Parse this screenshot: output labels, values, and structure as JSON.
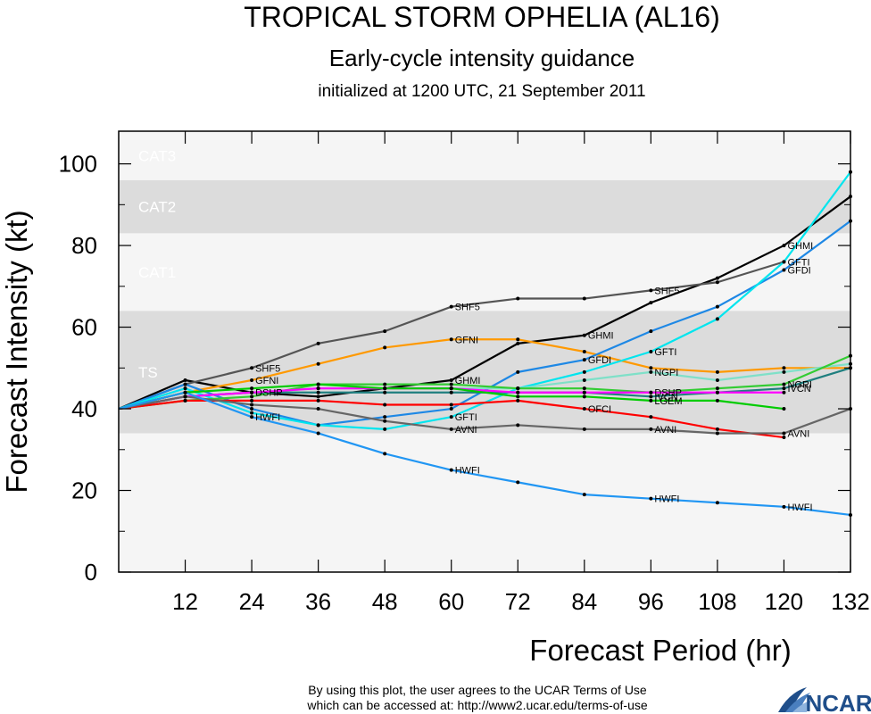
{
  "header": {
    "title": "TROPICAL STORM OPHELIA (AL16)",
    "subtitle": "Early-cycle intensity guidance",
    "init_line": "initialized at 1200 UTC, 21 September 2011"
  },
  "footer": {
    "line1": "By using this plot, the user agrees to the UCAR Terms of Use",
    "line2": "which can be accessed at: http://www2.ucar.edu/terms-of-use",
    "logo_text": "NCAR"
  },
  "chart_data": {
    "type": "line",
    "xlabel": "Forecast Period (hr)",
    "ylabel": "Forecast Intensity (kt)",
    "xlim": [
      0,
      132
    ],
    "ylim": [
      0,
      108
    ],
    "xticks": [
      12,
      24,
      36,
      48,
      60,
      72,
      84,
      96,
      108,
      120,
      132
    ],
    "yticks": [
      0,
      20,
      40,
      60,
      80,
      100
    ],
    "grid": false,
    "intensity_bands": [
      {
        "label": "TS",
        "from": 34,
        "to": 64,
        "color": "#dcdcdc"
      },
      {
        "label": "CAT1",
        "from": 64,
        "to": 83,
        "color": "#f5f5f5"
      },
      {
        "label": "CAT2",
        "from": 83,
        "to": 96,
        "color": "#dcdcdc"
      },
      {
        "label": "CAT3",
        "from": 96,
        "to": 108,
        "color": "#f5f5f5"
      }
    ],
    "below_band_color": "#f5f5f5",
    "series": [
      {
        "name": "GHMI",
        "color": "#000000",
        "x": [
          0,
          12,
          24,
          36,
          48,
          60,
          72,
          84,
          96,
          108,
          120,
          132
        ],
        "values": [
          40,
          47,
          44,
          43,
          45,
          47,
          56,
          58,
          66,
          72,
          80,
          92
        ],
        "label_at": [
          60,
          84,
          120
        ]
      },
      {
        "name": "SHF5",
        "color": "#555555",
        "x": [
          0,
          12,
          24,
          36,
          48,
          60,
          72,
          84,
          96,
          108,
          120
        ],
        "values": [
          40,
          46,
          50,
          56,
          59,
          65,
          67,
          67,
          69,
          71,
          76
        ],
        "label_at": [
          24,
          60,
          96
        ]
      },
      {
        "name": "GFNI",
        "color": "#ff9900",
        "x": [
          0,
          12,
          24,
          36,
          48,
          60,
          72,
          84,
          96,
          108,
          120,
          132
        ],
        "values": [
          40,
          44,
          47,
          51,
          55,
          57,
          57,
          54,
          50,
          49,
          50,
          50
        ],
        "label_at": [
          24,
          60
        ]
      },
      {
        "name": "GFDI",
        "color": "#1e88e5",
        "x": [
          0,
          12,
          24,
          36,
          48,
          60,
          72,
          84,
          96,
          108,
          120,
          132
        ],
        "values": [
          40,
          46,
          40,
          36,
          38,
          40,
          49,
          52,
          59,
          65,
          74,
          86
        ],
        "label_at": [
          84,
          120
        ]
      },
      {
        "name": "GFTI",
        "color": "#00e5ee",
        "x": [
          0,
          12,
          24,
          36,
          48,
          60,
          72,
          84,
          96,
          108,
          120,
          132
        ],
        "values": [
          40,
          45,
          39,
          36,
          35,
          38,
          45,
          49,
          54,
          62,
          76,
          98
        ],
        "label_at": [
          60,
          96,
          120
        ]
      },
      {
        "name": "NGPI",
        "color": "#7fe0c8",
        "x": [
          0,
          12,
          24,
          36,
          48,
          60,
          72,
          84,
          96,
          108,
          120,
          132
        ],
        "values": [
          40,
          43,
          44,
          45,
          45,
          45,
          45,
          47,
          49,
          47,
          49,
          51
        ],
        "label_at": [
          96
        ]
      },
      {
        "name": "NGRI",
        "color": "#33cc33",
        "x": [
          0,
          12,
          24,
          36,
          48,
          60,
          72,
          84,
          96,
          108,
          120,
          132
        ],
        "values": [
          40,
          42,
          43,
          46,
          46,
          46,
          45,
          45,
          44,
          45,
          46,
          53
        ],
        "label_at": [
          120
        ]
      },
      {
        "name": "IVCN",
        "color": "#1f7f7f",
        "x": [
          0,
          12,
          24,
          36,
          48,
          60,
          72,
          84,
          96,
          108,
          120,
          132
        ],
        "values": [
          40,
          43,
          44,
          44,
          44,
          44,
          44,
          44,
          43,
          44,
          45,
          50
        ],
        "label_at": [
          96,
          120
        ]
      },
      {
        "name": "DSHP",
        "color": "#ff00ff",
        "x": [
          0,
          12,
          24,
          36,
          48,
          60,
          72,
          84,
          96,
          108,
          120
        ],
        "values": [
          40,
          43,
          44,
          45,
          45,
          45,
          44,
          44,
          44,
          44,
          44
        ],
        "label_at": [
          24,
          96
        ]
      },
      {
        "name": "LGEM",
        "color": "#00cc00",
        "x": [
          0,
          12,
          24,
          36,
          48,
          60,
          72,
          84,
          96,
          108,
          120
        ],
        "values": [
          40,
          44,
          45,
          46,
          45,
          45,
          43,
          43,
          42,
          42,
          40
        ],
        "label_at": [
          96
        ]
      },
      {
        "name": "OFCI",
        "color": "#ff0000",
        "x": [
          0,
          12,
          24,
          36,
          48,
          60,
          72,
          84,
          96,
          108,
          120
        ],
        "values": [
          40,
          42,
          42,
          42,
          41,
          41,
          42,
          40,
          38,
          35,
          33
        ],
        "label_at": [
          84
        ]
      },
      {
        "name": "AVNI",
        "color": "#666666",
        "x": [
          0,
          12,
          24,
          36,
          48,
          60,
          72,
          84,
          96,
          108,
          120,
          132
        ],
        "values": [
          40,
          43,
          41,
          40,
          37,
          35,
          36,
          35,
          35,
          34,
          34,
          40
        ],
        "label_at": [
          60,
          96,
          120
        ]
      },
      {
        "name": "HWFI",
        "color": "#2196f3",
        "x": [
          0,
          12,
          24,
          36,
          48,
          60,
          72,
          84,
          96,
          108,
          120,
          132
        ],
        "values": [
          40,
          44,
          38,
          34,
          29,
          25,
          22,
          19,
          18,
          17,
          16,
          14
        ],
        "label_at": [
          24,
          60,
          96,
          120
        ]
      }
    ]
  }
}
